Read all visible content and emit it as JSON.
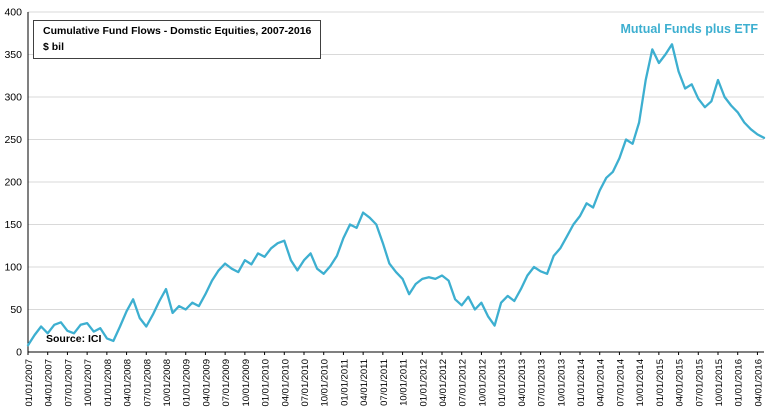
{
  "header": {
    "title": "Cumulative Fund Flows - Domstic Equities, 2007-2016",
    "subtitle": "$ bil"
  },
  "legend": {
    "label": "Mutual Funds plus ETF",
    "color": "#3DAFD0"
  },
  "source": {
    "label": "Source: ICI"
  },
  "chart_data": {
    "type": "line",
    "title": "Cumulative Fund Flows - Domstic Equities, 2007-2016",
    "xlabel": "",
    "ylabel": "$ bil",
    "ylim": [
      0,
      400
    ],
    "yticks": [
      0,
      50,
      100,
      150,
      200,
      250,
      300,
      350,
      400
    ],
    "grid": true,
    "grid_color": "#D9D9D9",
    "axis_color": "#000000",
    "legend_position": "top-right",
    "x_frequency": "monthly",
    "x_tick_labels": [
      "01/01/2007",
      "04/01/2007",
      "07/01/2007",
      "10/01/2007",
      "01/01/2008",
      "04/01/2008",
      "07/01/2008",
      "10/01/2008",
      "01/01/2009",
      "04/01/2009",
      "07/01/2009",
      "10/01/2009",
      "01/01/2010",
      "04/01/2010",
      "07/01/2010",
      "10/01/2010",
      "01/01/2011",
      "04/01/2011",
      "07/01/2011",
      "10/01/2011",
      "01/01/2012",
      "04/01/2012",
      "07/01/2012",
      "10/01/2012",
      "01/01/2013",
      "04/01/2013",
      "07/01/2013",
      "10/01/2013",
      "01/01/2014",
      "04/01/2014",
      "07/01/2014",
      "10/01/2014",
      "01/01/2015",
      "04/01/2015",
      "07/01/2015",
      "10/01/2015",
      "01/01/2016",
      "04/01/2016"
    ],
    "series": [
      {
        "name": "Mutual Funds plus ETF",
        "color": "#3DAFD0",
        "values": [
          8,
          20,
          30,
          22,
          32,
          35,
          25,
          22,
          32,
          34,
          24,
          28,
          16,
          13,
          30,
          48,
          62,
          40,
          30,
          44,
          60,
          74,
          46,
          54,
          50,
          58,
          54,
          68,
          84,
          96,
          104,
          98,
          94,
          108,
          103,
          116,
          112,
          122,
          128,
          131,
          108,
          96,
          108,
          116,
          98,
          92,
          101,
          113,
          134,
          150,
          146,
          164,
          158,
          150,
          128,
          104,
          94,
          86,
          68,
          80,
          86,
          88,
          86,
          90,
          84,
          62,
          55,
          65,
          50,
          58,
          42,
          31,
          58,
          66,
          60,
          74,
          90,
          100,
          95,
          92,
          113,
          122,
          136,
          150,
          160,
          175,
          170,
          190,
          205,
          212,
          228,
          250,
          245,
          270,
          320,
          356,
          340,
          350,
          362,
          330,
          310,
          315,
          298,
          288,
          295,
          320,
          300,
          290,
          282,
          270,
          262,
          256,
          252
        ]
      }
    ]
  }
}
